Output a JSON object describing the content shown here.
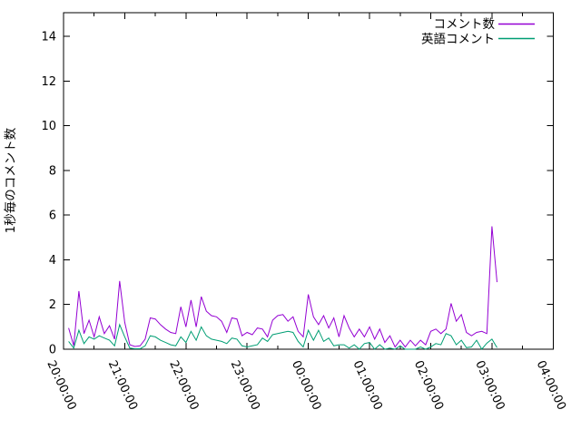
{
  "figure": {
    "background": "#ffffff",
    "axis_color": "#000000",
    "text_color": "#000000"
  },
  "chart_data": {
    "type": "line",
    "title": "",
    "xlabel": "",
    "ylabel": "1秒毎のコメント数",
    "x_tick_labels": [
      "20:00:00",
      "21:00:00",
      "22:00:00",
      "23:00:00",
      "00:00:00",
      "01:00:00",
      "02:00:00",
      "03:00:00",
      "04:00:00"
    ],
    "x_axis_hours_span": 8,
    "x_minor_tick_every_hours": 0.5,
    "y_ticks": [
      0,
      2,
      4,
      6,
      8,
      10,
      12,
      14
    ],
    "ylim": [
      0,
      15.05
    ],
    "grid": false,
    "legend_position": "top-right-inside",
    "first_sample_offset_minutes": 5,
    "sample_interval_minutes": 5,
    "series": [
      {
        "name": "コメント数",
        "color": "#9400d3",
        "values": [
          0.95,
          0.15,
          2.6,
          0.7,
          1.3,
          0.55,
          1.45,
          0.7,
          1.05,
          0.45,
          3.05,
          1.2,
          0.2,
          0.12,
          0.15,
          0.45,
          1.4,
          1.35,
          1.1,
          0.9,
          0.75,
          0.7,
          1.9,
          1.0,
          2.2,
          1.0,
          2.35,
          1.7,
          1.5,
          1.45,
          1.25,
          0.75,
          1.4,
          1.35,
          0.6,
          0.75,
          0.65,
          0.95,
          0.9,
          0.55,
          1.3,
          1.5,
          1.55,
          1.25,
          1.45,
          0.8,
          0.55,
          2.45,
          1.45,
          1.1,
          1.5,
          0.95,
          1.4,
          0.55,
          1.5,
          0.95,
          0.55,
          0.9,
          0.55,
          1.0,
          0.45,
          0.9,
          0.3,
          0.6,
          0.1,
          0.4,
          0.1,
          0.4,
          0.15,
          0.4,
          0.2,
          0.8,
          0.9,
          0.7,
          0.9,
          2.05,
          1.25,
          1.55,
          0.75,
          0.6,
          0.75,
          0.8,
          0.7,
          5.5,
          3.0
        ]
      },
      {
        "name": "英語コメント",
        "color": "#009e73",
        "values": [
          0.35,
          0.05,
          0.85,
          0.25,
          0.55,
          0.45,
          0.6,
          0.5,
          0.4,
          0.15,
          1.1,
          0.55,
          0.05,
          0.02,
          0.02,
          0.15,
          0.6,
          0.55,
          0.4,
          0.3,
          0.2,
          0.15,
          0.55,
          0.3,
          0.8,
          0.4,
          1.0,
          0.6,
          0.45,
          0.4,
          0.35,
          0.25,
          0.5,
          0.45,
          0.15,
          0.1,
          0.15,
          0.2,
          0.5,
          0.35,
          0.65,
          0.7,
          0.75,
          0.8,
          0.75,
          0.35,
          0.1,
          0.85,
          0.4,
          0.85,
          0.35,
          0.5,
          0.15,
          0.2,
          0.2,
          0.05,
          0.2,
          0.0,
          0.25,
          0.3,
          0.0,
          0.2,
          0.0,
          0.05,
          0.0,
          0.15,
          0.0,
          0.0,
          0.0,
          0.1,
          0.0,
          0.1,
          0.25,
          0.2,
          0.7,
          0.6,
          0.2,
          0.4,
          0.07,
          0.1,
          0.4,
          0.0,
          0.27,
          0.45,
          0.07
        ]
      }
    ]
  }
}
